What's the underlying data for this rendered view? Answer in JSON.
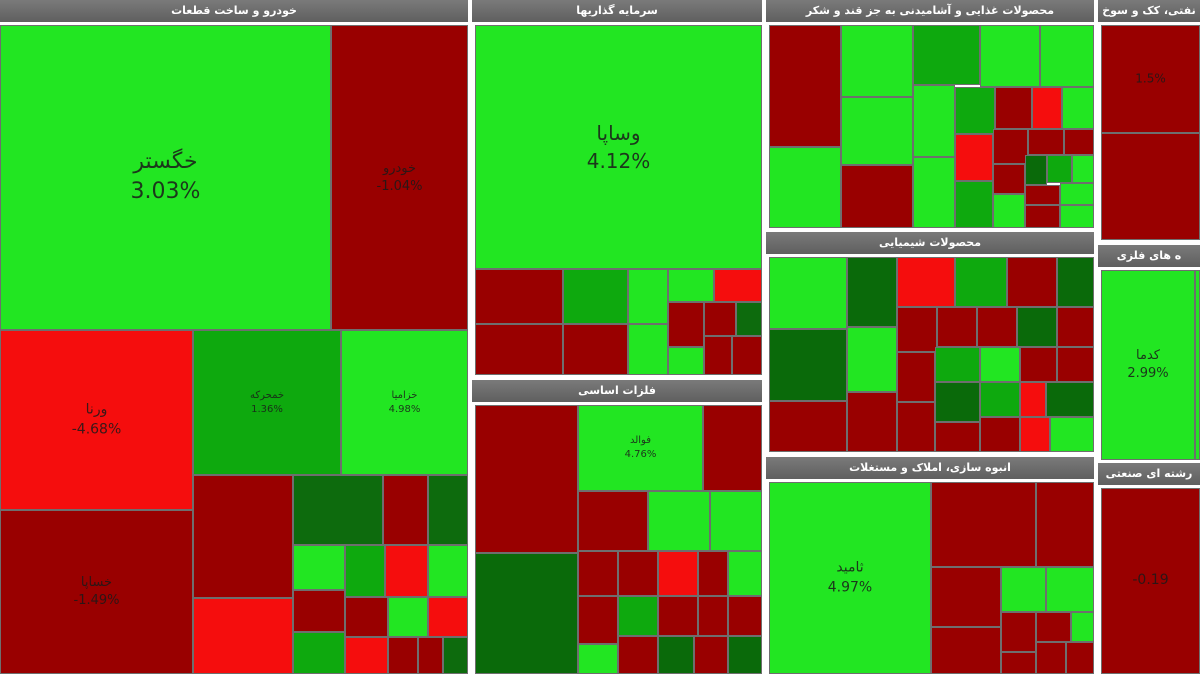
{
  "colors": {
    "pos_strong": "#22e622",
    "pos_mid": "#0ea90e",
    "neg_strong": "#f50d0d",
    "neg_mid": "#990000",
    "header": "#6b6b6b"
  },
  "chart_data": {
    "type": "treemap",
    "title": "",
    "sectors": [
      {
        "name": "خودرو و ساخت قطعات",
        "symbols": [
          {
            "name": "خگستر",
            "change": "3.03%",
            "value": 3.03
          },
          {
            "name": "خودرو",
            "change": "-1.04%",
            "value": -1.04
          },
          {
            "name": "ورنا",
            "change": "-4.68%",
            "value": -4.68
          },
          {
            "name": "خمحرکه",
            "change": "1.36%",
            "value": 1.36
          },
          {
            "name": "خزامیا",
            "change": "4.98%",
            "value": 4.98
          },
          {
            "name": "خساپا",
            "change": "-1.49%",
            "value": -1.49
          }
        ]
      },
      {
        "name": "سرمایه گذاریها",
        "symbols": [
          {
            "name": "وساپا",
            "change": "4.12%",
            "value": 4.12
          }
        ]
      },
      {
        "name": "فلزات اساسی",
        "symbols": [
          {
            "name": "فوالد",
            "change": "4.76%",
            "value": 4.76
          }
        ]
      },
      {
        "name": "محصولات غذایی و آشامیدنی به جز قند و شکر",
        "symbols": []
      },
      {
        "name": "محصولات شیمیایی",
        "symbols": []
      },
      {
        "name": "انبوه سازی، املاک و مستغلات",
        "symbols": [
          {
            "name": "ثامید",
            "change": "4.97%",
            "value": 4.97
          }
        ]
      },
      {
        "name": "نفتی، کک و سوخ",
        "symbols": [
          {
            "name": "",
            "change": "1.5%",
            "value": 1.5
          }
        ]
      },
      {
        "name": "ه های فلزی",
        "symbols": [
          {
            "name": "کدما",
            "change": "2.99%",
            "value": 2.99
          }
        ]
      },
      {
        "name": "رشته ای صنعتی",
        "symbols": [
          {
            "name": "",
            "change": "-0.19",
            "value": -0.19
          }
        ]
      }
    ]
  }
}
